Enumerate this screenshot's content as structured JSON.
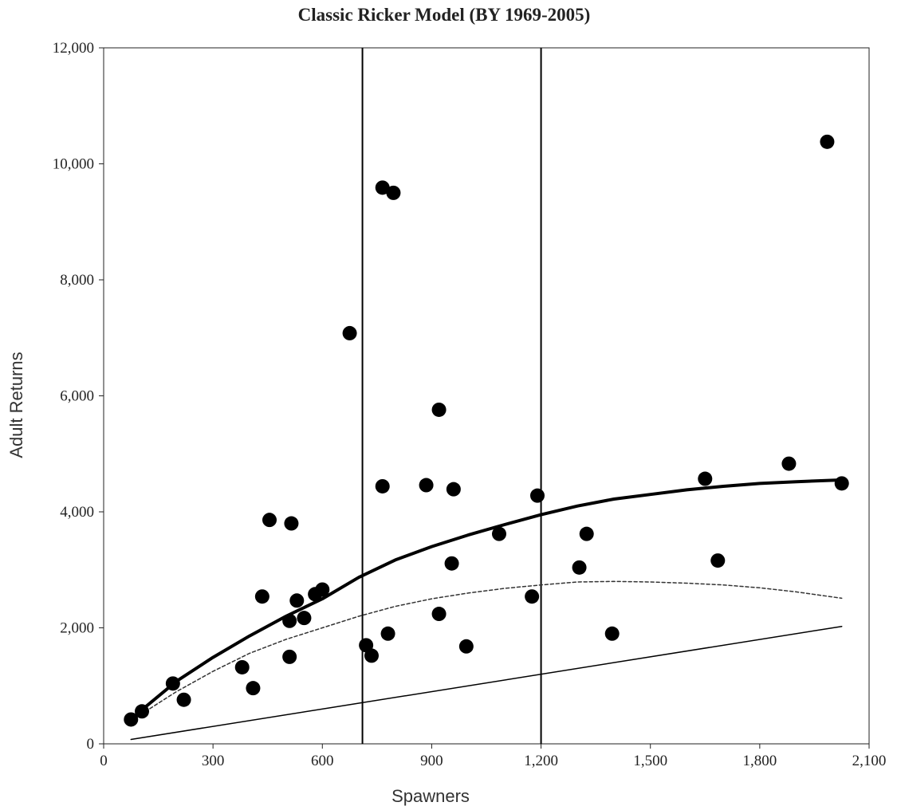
{
  "chart_data": {
    "type": "scatter",
    "title": "Classic Ricker Model (BY 1969-2005)",
    "xlabel": "Spawners",
    "ylabel": "Adult Returns",
    "xlim": [
      0,
      2100
    ],
    "ylim": [
      0,
      12000
    ],
    "x_ticks": [
      "0",
      "300",
      "600",
      "900",
      "1,200",
      "1,500",
      "1,800",
      "2,100"
    ],
    "y_ticks": [
      "0",
      "2,000",
      "4,000",
      "6,000",
      "8,000",
      "10,000",
      "12,000"
    ],
    "grid": false,
    "legend": "none",
    "vertical_reference_lines": [
      710,
      1200
    ],
    "points": [
      [
        75,
        420
      ],
      [
        105,
        560
      ],
      [
        190,
        1040
      ],
      [
        220,
        760
      ],
      [
        380,
        1320
      ],
      [
        410,
        960
      ],
      [
        435,
        2540
      ],
      [
        455,
        3860
      ],
      [
        510,
        2120
      ],
      [
        510,
        1500
      ],
      [
        515,
        3800
      ],
      [
        530,
        2470
      ],
      [
        550,
        2170
      ],
      [
        580,
        2580
      ],
      [
        600,
        2660
      ],
      [
        675,
        7080
      ],
      [
        720,
        1700
      ],
      [
        735,
        1520
      ],
      [
        765,
        9590
      ],
      [
        765,
        4440
      ],
      [
        780,
        1900
      ],
      [
        795,
        9500
      ],
      [
        885,
        4460
      ],
      [
        920,
        5760
      ],
      [
        920,
        2240
      ],
      [
        955,
        3110
      ],
      [
        960,
        4390
      ],
      [
        995,
        1680
      ],
      [
        1085,
        3620
      ],
      [
        1175,
        2540
      ],
      [
        1190,
        4280
      ],
      [
        1305,
        3040
      ],
      [
        1325,
        3620
      ],
      [
        1395,
        1900
      ],
      [
        1650,
        4570
      ],
      [
        1685,
        3160
      ],
      [
        1880,
        4830
      ],
      [
        1985,
        10380
      ],
      [
        2025,
        4490
      ]
    ],
    "series": [
      {
        "style": "thick-solid",
        "x": [
          75,
          200,
          300,
          400,
          500,
          600,
          700,
          800,
          900,
          1000,
          1100,
          1200,
          1300,
          1400,
          1500,
          1600,
          1700,
          1800,
          1900,
          2025
        ],
        "y": [
          430,
          1080,
          1490,
          1860,
          2200,
          2500,
          2870,
          3170,
          3400,
          3600,
          3780,
          3950,
          4100,
          4220,
          4300,
          4380,
          4440,
          4490,
          4520,
          4550
        ]
      },
      {
        "style": "dashed",
        "x": [
          75,
          200,
          300,
          400,
          500,
          600,
          700,
          800,
          900,
          1000,
          1100,
          1200,
          1300,
          1400,
          1500,
          1600,
          1700,
          1800,
          1900,
          2025
        ],
        "y": [
          400,
          900,
          1250,
          1560,
          1800,
          2000,
          2200,
          2370,
          2500,
          2600,
          2680,
          2740,
          2790,
          2800,
          2790,
          2770,
          2740,
          2690,
          2620,
          2510
        ]
      },
      {
        "style": "thin-solid",
        "x": [
          75,
          2025
        ],
        "y": [
          75,
          2025
        ]
      }
    ]
  }
}
